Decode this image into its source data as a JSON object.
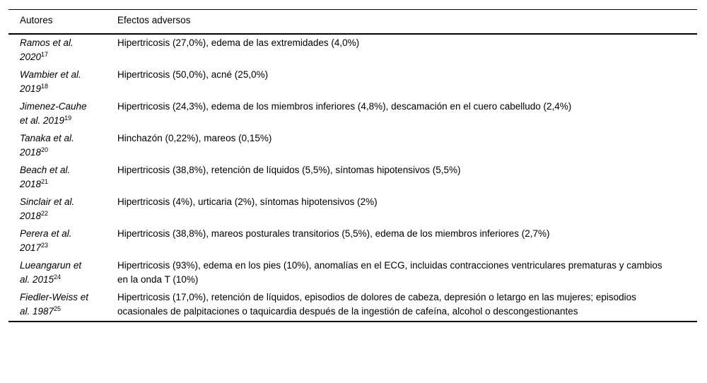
{
  "colors": {
    "text": "#000000",
    "background": "#ffffff",
    "rule": "#000000"
  },
  "table": {
    "columns": [
      {
        "label": "Autores"
      },
      {
        "label": "Efectos adversos"
      }
    ],
    "rows": [
      {
        "author": "Ramos et al. 2020",
        "ref": "17",
        "effects": "Hipertricosis (27,0%), edema de las extremidades (4,0%)"
      },
      {
        "author": "Wambier et al. 2019",
        "ref": "18",
        "effects": "Hipertricosis (50,0%), acné (25,0%)"
      },
      {
        "author": "Jimenez-Cauhe et al. 2019",
        "ref": "19",
        "effects": "Hipertricosis (24,3%), edema de los miembros inferiores (4,8%), descamación en el cuero cabelludo (2,4%)"
      },
      {
        "author": "Tanaka et al. 2018",
        "ref": "20",
        "effects": "Hinchazón (0,22%), mareos (0,15%)"
      },
      {
        "author": "Beach et al. 2018",
        "ref": "21",
        "effects": "Hipertricosis (38,8%), retención de líquidos (5,5%), síntomas hipotensivos (5,5%)"
      },
      {
        "author": "Sinclair et al. 2018",
        "ref": "22",
        "effects": "Hipertricosis (4%), urticaria (2%), síntomas hipotensivos (2%)"
      },
      {
        "author": "Perera et al. 2017",
        "ref": "23",
        "effects": "Hipertricosis (38,8%), mareos posturales transitorios (5,5%), edema de los miembros inferiores (2,7%)"
      },
      {
        "author": "Lueangarun et al. 2015",
        "ref": "24",
        "effects": "Hipertricosis (93%), edema en los pies (10%), anomalías en el ECG, incluidas contracciones ventriculares prematuras y cambios en la onda T (10%)"
      },
      {
        "author": "Fiedler-Weiss et al. 1987",
        "ref": "25",
        "effects": "Hipertricosis (17,0%), retención de líquidos, episodios de dolores de cabeza, depresión o letargo en las mujeres; episodios ocasionales de palpitaciones o taquicardia después de la ingestión de cafeína, alcohol o descongestionantes"
      }
    ]
  }
}
